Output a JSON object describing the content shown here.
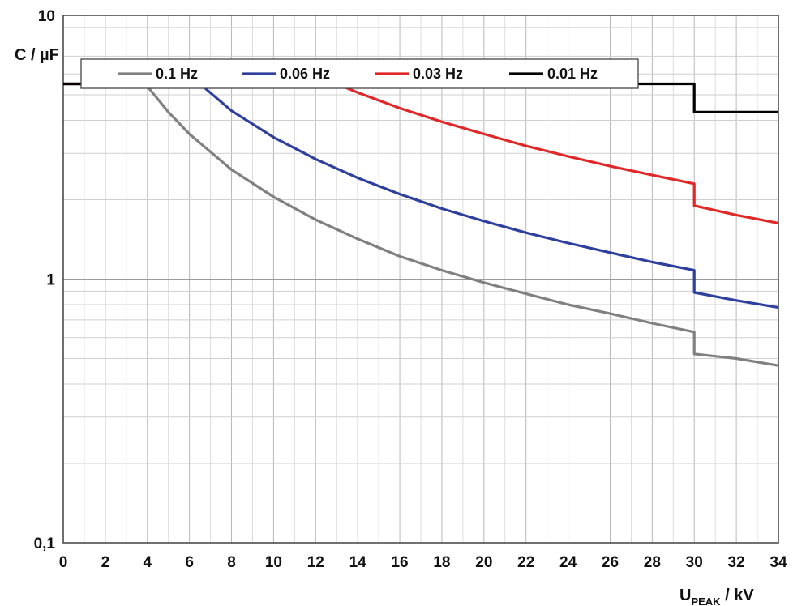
{
  "chart_data": {
    "type": "line",
    "title": "",
    "xlabel": {
      "main": "U",
      "sub": "PEAK",
      "unit": " / kV"
    },
    "ylabel": "C / µF",
    "xlim": [
      0,
      34
    ],
    "ylim": [
      0.1,
      10
    ],
    "y_scale": "log",
    "x_ticks": [
      0,
      2,
      4,
      6,
      8,
      10,
      12,
      14,
      16,
      18,
      20,
      22,
      24,
      26,
      28,
      30,
      32,
      34
    ],
    "x_tick_labels": [
      "0",
      "2",
      "4",
      "6",
      "8",
      "10",
      "12",
      "14",
      "16",
      "18",
      "20",
      "22",
      "24",
      "26",
      "28",
      "30",
      "32",
      "34"
    ],
    "y_ticks": [
      0.1,
      1,
      10
    ],
    "y_tick_labels": [
      "0,1",
      "1",
      "10"
    ],
    "grid": true,
    "legend_position": "top",
    "series": [
      {
        "name": "0.1 Hz",
        "color": "#808080",
        "x": [
          0,
          3.9,
          5,
          6,
          8,
          10,
          12,
          14,
          16,
          18,
          20,
          22,
          24,
          26,
          28,
          30,
          30,
          32,
          34
        ],
        "y": [
          5.5,
          5.5,
          4.3,
          3.55,
          2.6,
          2.05,
          1.68,
          1.42,
          1.22,
          1.08,
          0.97,
          0.88,
          0.8,
          0.74,
          0.68,
          0.63,
          0.52,
          0.5,
          0.47
        ]
      },
      {
        "name": "0.06 Hz",
        "color": "#2e3f9e",
        "x": [
          0,
          6.5,
          8,
          10,
          12,
          14,
          16,
          18,
          20,
          22,
          24,
          26,
          28,
          30,
          30,
          32,
          34
        ],
        "y": [
          5.5,
          5.5,
          4.35,
          3.45,
          2.85,
          2.42,
          2.1,
          1.85,
          1.66,
          1.5,
          1.37,
          1.26,
          1.16,
          1.08,
          0.89,
          0.83,
          0.78
        ]
      },
      {
        "name": "0.03 Hz",
        "color": "#e02828",
        "x": [
          0,
          13,
          14,
          16,
          18,
          20,
          22,
          24,
          26,
          28,
          30,
          30,
          32,
          34
        ],
        "y": [
          5.5,
          5.5,
          5.1,
          4.45,
          3.95,
          3.55,
          3.2,
          2.92,
          2.68,
          2.48,
          2.3,
          1.9,
          1.75,
          1.63
        ]
      },
      {
        "name": "0.01 Hz",
        "color": "#000000",
        "x": [
          0,
          30,
          30,
          34
        ],
        "y": [
          5.5,
          5.5,
          4.3,
          4.3
        ]
      }
    ]
  }
}
